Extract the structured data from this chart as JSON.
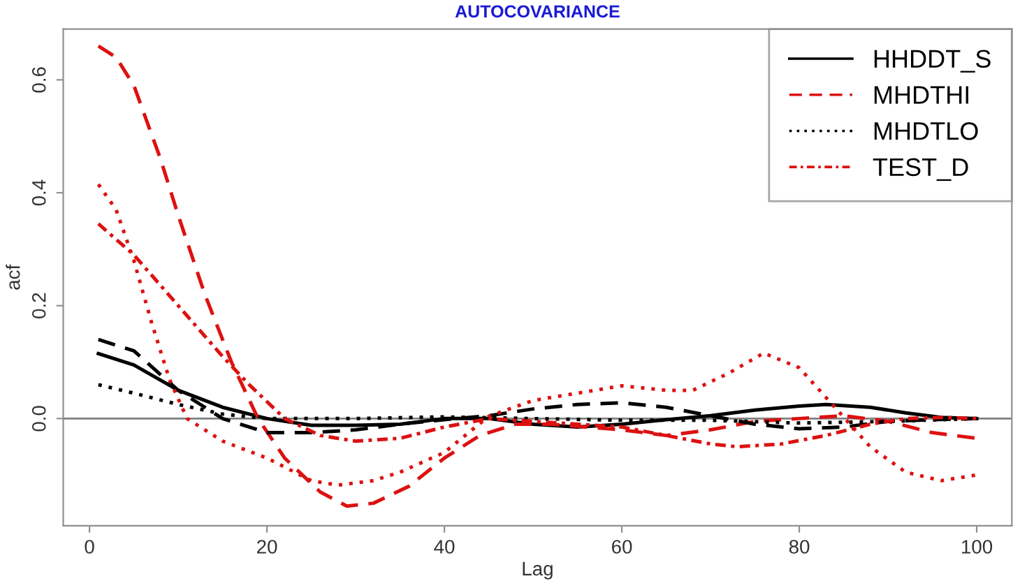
{
  "chart_data": {
    "type": "line",
    "title": "AUTOCOVARIANCE",
    "xlabel": "Lag",
    "ylabel": "acf",
    "xlim": [
      -2.96,
      103.96
    ],
    "ylim": [
      -0.19,
      0.69
    ],
    "xticks": [
      0,
      20,
      40,
      60,
      80,
      100
    ],
    "yticks": [
      {
        "value": 0,
        "label": "0.0"
      },
      {
        "value": 0.2,
        "label": "0.2"
      },
      {
        "value": 0.4,
        "label": "0.4"
      },
      {
        "value": 0.6,
        "label": "0.6"
      }
    ],
    "grid": false,
    "legend": "top right",
    "marker": "none",
    "ref_lines": [
      {
        "axis": "y",
        "value": 0,
        "label": null,
        "color": "#808080",
        "line_style": "solid"
      }
    ],
    "series": [
      {
        "name": "HHDDT_S",
        "color": "#000000",
        "line_style": "solid",
        "x": [
          1,
          5,
          10,
          15,
          20,
          25,
          30,
          35,
          40,
          45,
          50,
          55,
          60,
          65,
          70,
          75,
          80,
          83,
          88,
          92,
          96,
          100
        ],
        "values": [
          0.115,
          0.095,
          0.05,
          0.02,
          0.0,
          -0.012,
          -0.012,
          -0.01,
          0.0,
          0.0,
          -0.01,
          -0.015,
          -0.01,
          -0.002,
          0.005,
          0.015,
          0.022,
          0.025,
          0.02,
          0.01,
          0.002,
          0.0
        ]
      },
      {
        "name": "MHDTHI",
        "color": "#dd1111",
        "line_style": "dashed",
        "x": [
          1,
          3,
          5,
          8,
          10,
          13,
          16,
          19,
          22,
          26,
          29,
          32,
          36,
          40,
          44,
          48,
          52,
          56,
          60,
          65,
          70,
          75,
          80,
          85,
          90,
          95,
          100
        ],
        "values": [
          0.66,
          0.64,
          0.59,
          0.46,
          0.36,
          0.22,
          0.1,
          0.0,
          -0.07,
          -0.13,
          -0.155,
          -0.15,
          -0.12,
          -0.07,
          -0.03,
          -0.01,
          -0.01,
          -0.015,
          -0.02,
          -0.03,
          -0.02,
          -0.005,
          0.0,
          0.005,
          -0.005,
          -0.025,
          -0.035
        ]
      },
      {
        "name": "MHDTLO",
        "color": "#000000",
        "line_style": "dotted",
        "x": [
          1,
          5,
          10,
          15,
          20,
          30,
          40,
          50,
          60,
          70,
          80,
          90,
          100
        ],
        "values": [
          0.06,
          0.045,
          0.025,
          0.008,
          0.0,
          0.0,
          0.003,
          0.0,
          -0.003,
          -0.003,
          -0.008,
          -0.005,
          0.0
        ]
      },
      {
        "name": "TEST_D",
        "color": "#dd1111",
        "line_style": "dashdot",
        "x": [
          1,
          5,
          10,
          15,
          18,
          22,
          26,
          30,
          35,
          40,
          45,
          50,
          55,
          60,
          65,
          70,
          73,
          78,
          83,
          88,
          92,
          96,
          100
        ],
        "values": [
          0.345,
          0.29,
          0.2,
          0.11,
          0.06,
          0.0,
          -0.03,
          -0.04,
          -0.035,
          -0.015,
          0.0,
          -0.005,
          -0.01,
          -0.015,
          -0.03,
          -0.045,
          -0.05,
          -0.045,
          -0.03,
          -0.01,
          0.0,
          0.002,
          0.0
        ]
      },
      {
        "color": "#000000",
        "line_style": "dashed",
        "x": [
          1,
          5,
          10,
          15,
          20,
          25,
          30,
          35,
          40,
          45,
          50,
          55,
          60,
          65,
          70,
          75,
          80,
          85,
          90,
          95,
          100
        ],
        "values": [
          0.14,
          0.12,
          0.05,
          0.0,
          -0.025,
          -0.025,
          -0.02,
          -0.01,
          -0.002,
          0.005,
          0.017,
          0.025,
          0.028,
          0.02,
          0.005,
          -0.01,
          -0.018,
          -0.015,
          -0.005,
          -0.002,
          0.0
        ]
      },
      {
        "color": "#dd1111",
        "line_style": "dotted",
        "x": [
          1,
          3,
          5,
          7,
          9,
          11,
          15,
          20,
          25,
          28,
          32,
          35,
          40,
          45,
          50,
          55,
          60,
          65,
          68,
          72,
          76,
          80,
          84,
          88,
          92,
          96,
          100
        ],
        "values": [
          0.415,
          0.37,
          0.28,
          0.17,
          0.07,
          0.0,
          -0.04,
          -0.07,
          -0.11,
          -0.118,
          -0.11,
          -0.095,
          -0.06,
          0.004,
          0.032,
          0.045,
          0.058,
          0.05,
          0.05,
          0.08,
          0.116,
          0.09,
          0.02,
          -0.05,
          -0.095,
          -0.11,
          -0.1
        ]
      }
    ]
  }
}
